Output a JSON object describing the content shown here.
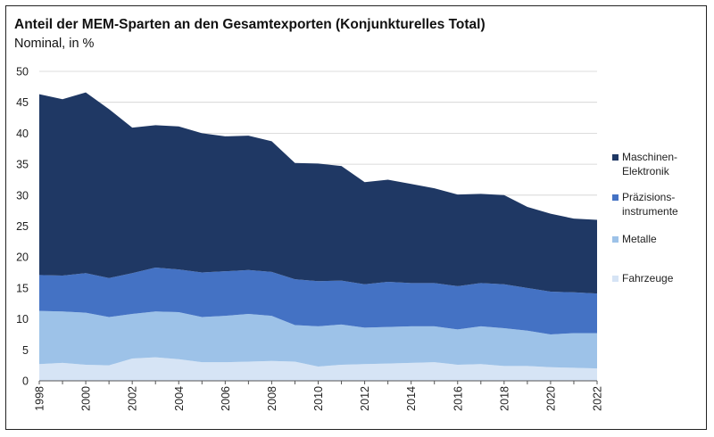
{
  "chart_data": {
    "type": "area",
    "stacked": true,
    "title": "Anteil der MEM-Sparten an den Gesamtexporten (Konjunkturelles Total)",
    "subtitle": "Nominal, in %",
    "ylim": [
      0,
      50
    ],
    "yticks": [
      "0",
      "5",
      "10",
      "15",
      "20",
      "25",
      "30",
      "35",
      "40",
      "45",
      "50"
    ],
    "xlim": [
      1998,
      2022
    ],
    "xticks": [
      "1998",
      "2000",
      "2002",
      "2004",
      "2006",
      "2008",
      "2010",
      "2012",
      "2014",
      "2016",
      "2018",
      "2020",
      "2022"
    ],
    "grid": "horizontal",
    "legend_position": "right",
    "x": [
      1998,
      1999,
      2000,
      2001,
      2002,
      2003,
      2004,
      2005,
      2006,
      2007,
      2008,
      2009,
      2010,
      2011,
      2012,
      2013,
      2014,
      2015,
      2016,
      2017,
      2018,
      2019,
      2020,
      2021,
      2022
    ],
    "series": [
      {
        "name": "Fahrzeuge",
        "color": "#d6e4f5",
        "values": [
          2.7,
          2.9,
          2.6,
          2.5,
          3.6,
          3.8,
          3.5,
          3.0,
          3.0,
          3.1,
          3.2,
          3.1,
          2.3,
          2.6,
          2.7,
          2.8,
          2.9,
          3.0,
          2.6,
          2.7,
          2.4,
          2.4,
          2.2,
          2.1,
          2.0
        ]
      },
      {
        "name": "Metalle",
        "color": "#9dc2e8",
        "values": [
          8.6,
          8.3,
          8.4,
          7.8,
          7.2,
          7.4,
          7.6,
          7.3,
          7.5,
          7.7,
          7.3,
          5.9,
          6.5,
          6.5,
          5.9,
          5.9,
          5.9,
          5.8,
          5.7,
          6.1,
          6.1,
          5.7,
          5.3,
          5.6,
          5.7
        ]
      },
      {
        "name": "Präzisions-instrumente",
        "color": "#4472c4",
        "values": [
          5.8,
          5.8,
          6.4,
          6.3,
          6.6,
          7.1,
          6.9,
          7.2,
          7.2,
          7.1,
          7.1,
          7.4,
          7.3,
          7.1,
          7.0,
          7.3,
          7.0,
          7.0,
          7.0,
          7.0,
          7.1,
          6.9,
          6.9,
          6.6,
          6.4
        ]
      },
      {
        "name": "Maschinen-Elektronik",
        "color": "#1f3864",
        "values": [
          29.2,
          28.5,
          29.2,
          27.3,
          23.5,
          23.0,
          23.1,
          22.5,
          21.8,
          21.7,
          21.1,
          18.8,
          19.0,
          18.5,
          16.5,
          16.5,
          16.0,
          15.3,
          14.8,
          14.4,
          14.4,
          13.1,
          12.6,
          11.9,
          11.9
        ]
      }
    ]
  }
}
